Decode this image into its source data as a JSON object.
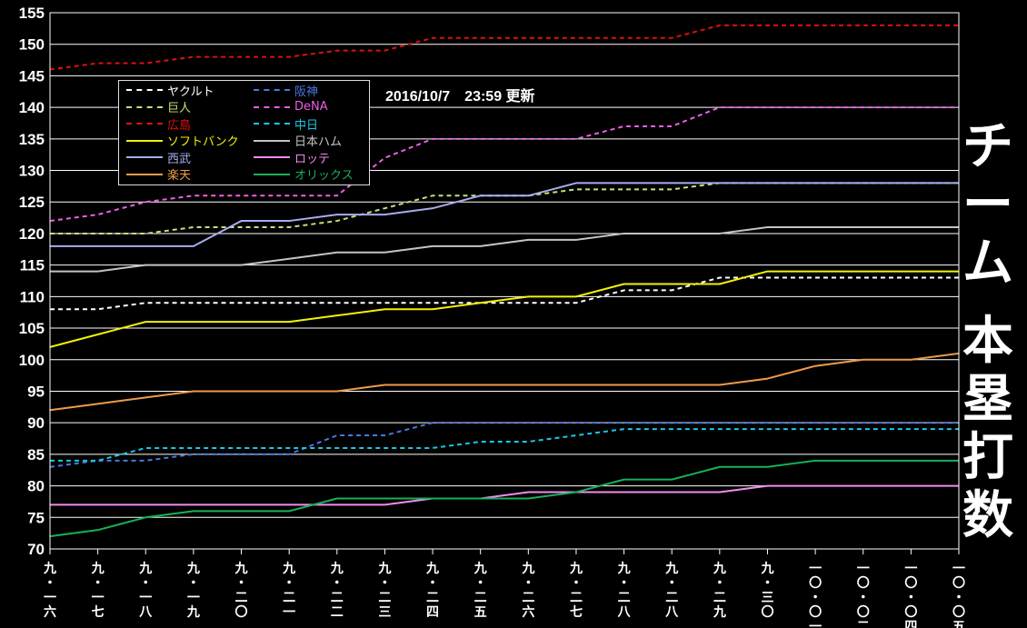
{
  "stamp": "2016/10/7　23:59 更新",
  "side_title": [
    "チ",
    "ー",
    "ム",
    "",
    "本",
    "塁",
    "打",
    "数"
  ],
  "chart_data": {
    "type": "line",
    "title": "チーム 本塁打数",
    "ylim": [
      70,
      155
    ],
    "yticks": [
      70,
      75,
      80,
      85,
      90,
      95,
      100,
      105,
      110,
      115,
      120,
      125,
      130,
      135,
      140,
      145,
      150,
      155
    ],
    "categories": [
      "九・一六",
      "九・一七",
      "九・一八",
      "九・一九",
      "九・二〇",
      "九・二一",
      "九・二二",
      "九・二三",
      "九・二四",
      "九・二五",
      "九・二六",
      "九・二七",
      "九・二八",
      "九・二八",
      "九・二九",
      "九・三〇",
      "一〇・〇一",
      "一〇・〇二",
      "一〇・〇四",
      "一〇・〇五"
    ],
    "grid": true,
    "legend_position": "top-left",
    "series": [
      {
        "name": "ヤクルト",
        "color": "#ffffff",
        "dash": true,
        "values": [
          108,
          108,
          109,
          109,
          109,
          109,
          109,
          109,
          109,
          109,
          109,
          109,
          111,
          111,
          113,
          113,
          113,
          113,
          113,
          113
        ]
      },
      {
        "name": "阪神",
        "color": "#4a78e0",
        "dash": true,
        "values": [
          83,
          84,
          84,
          85,
          85,
          85,
          88,
          88,
          90,
          90,
          90,
          90,
          90,
          90,
          90,
          90,
          90,
          90,
          90,
          90
        ]
      },
      {
        "name": "巨人",
        "color": "#c2e27a",
        "dash": true,
        "values": [
          120,
          120,
          120,
          121,
          121,
          121,
          122,
          124,
          126,
          126,
          126,
          127,
          127,
          127,
          128,
          128,
          128,
          128,
          128,
          128
        ]
      },
      {
        "name": "DeNA",
        "color": "#ee5ee6",
        "dash": true,
        "values": [
          122,
          123,
          125,
          126,
          126,
          126,
          126,
          132,
          135,
          135,
          135,
          135,
          137,
          137,
          140,
          140,
          140,
          140,
          140,
          140
        ]
      },
      {
        "name": "広島",
        "color": "#dd1111",
        "dash": true,
        "values": [
          146,
          147,
          147,
          148,
          148,
          148,
          149,
          149,
          151,
          151,
          151,
          151,
          151,
          151,
          153,
          153,
          153,
          153,
          153,
          153
        ]
      },
      {
        "name": "中日",
        "color": "#18c8e8",
        "dash": true,
        "values": [
          84,
          84,
          86,
          86,
          86,
          86,
          86,
          86,
          86,
          87,
          87,
          88,
          89,
          89,
          89,
          89,
          89,
          89,
          89,
          89
        ]
      },
      {
        "name": "ソフトバンク",
        "color": "#f2f20a",
        "dash": false,
        "values": [
          102,
          104,
          106,
          106,
          106,
          106,
          107,
          108,
          108,
          109,
          110,
          110,
          112,
          112,
          112,
          114,
          114,
          114,
          114,
          114
        ]
      },
      {
        "name": "日本ハム",
        "color": "#c4c4c4",
        "dash": false,
        "values": [
          114,
          114,
          115,
          115,
          115,
          116,
          117,
          117,
          118,
          118,
          119,
          119,
          120,
          120,
          120,
          121,
          121,
          121,
          121,
          121
        ]
      },
      {
        "name": "西武",
        "color": "#a8acf0",
        "dash": false,
        "values": [
          118,
          118,
          118,
          118,
          122,
          122,
          123,
          123,
          124,
          126,
          126,
          128,
          128,
          128,
          128,
          128,
          128,
          128,
          128,
          128
        ]
      },
      {
        "name": "ロッテ",
        "color": "#f28cf0",
        "dash": false,
        "values": [
          77,
          77,
          77,
          77,
          77,
          77,
          77,
          77,
          78,
          78,
          79,
          79,
          79,
          79,
          79,
          80,
          80,
          80,
          80,
          80
        ]
      },
      {
        "name": "楽天",
        "color": "#f09a4a",
        "dash": false,
        "values": [
          92,
          93,
          94,
          95,
          95,
          95,
          95,
          96,
          96,
          96,
          96,
          96,
          96,
          96,
          96,
          97,
          99,
          100,
          100,
          101
        ]
      },
      {
        "name": "オリックス",
        "color": "#18b058",
        "dash": false,
        "values": [
          72,
          73,
          75,
          76,
          76,
          76,
          78,
          78,
          78,
          78,
          78,
          79,
          81,
          81,
          83,
          83,
          84,
          84,
          84,
          84
        ]
      }
    ]
  }
}
